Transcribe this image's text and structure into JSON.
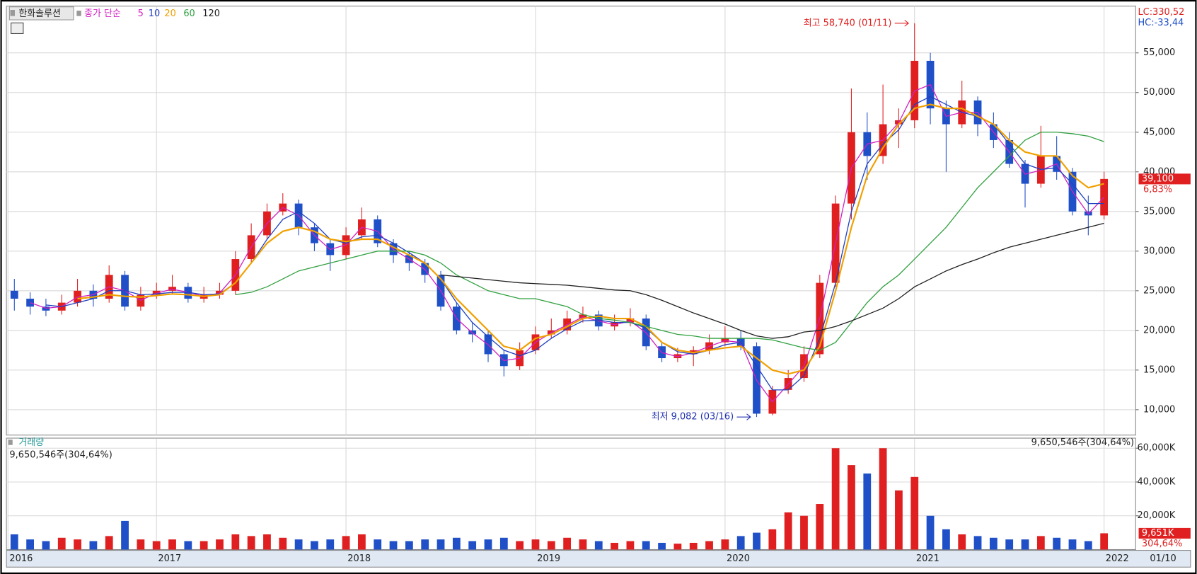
{
  "header": {
    "stock_name": "한화솔루션",
    "ma_label": "종가 단순",
    "lc": "LC:330,52",
    "hc": "HC:-33,44"
  },
  "chart_data": [
    {
      "type": "candlestick",
      "categories": [
        "2016",
        null,
        null,
        null,
        null,
        null,
        null,
        null,
        null,
        "2017",
        null,
        null,
        null,
        null,
        null,
        null,
        null,
        null,
        null,
        null,
        null,
        "2018",
        null,
        null,
        null,
        null,
        null,
        null,
        null,
        null,
        null,
        null,
        null,
        "2019",
        null,
        null,
        null,
        null,
        null,
        null,
        null,
        null,
        null,
        null,
        null,
        "2020",
        null,
        null,
        null,
        null,
        null,
        null,
        null,
        null,
        null,
        null,
        null,
        "2021",
        null,
        null,
        null,
        null,
        null,
        null,
        null,
        null,
        null,
        null,
        null,
        "2022"
      ],
      "candles": [
        [
          25000,
          26500,
          22500,
          24000
        ],
        [
          24000,
          24800,
          22000,
          23000
        ],
        [
          23000,
          24000,
          21800,
          22500
        ],
        [
          22500,
          24500,
          22000,
          23500
        ],
        [
          23500,
          26500,
          23000,
          25000
        ],
        [
          25000,
          25800,
          23000,
          24000
        ],
        [
          24000,
          28200,
          23500,
          27000
        ],
        [
          27000,
          27500,
          22500,
          23000
        ],
        [
          23000,
          25500,
          22500,
          24500
        ],
        [
          24500,
          26000,
          24000,
          25000
        ],
        [
          25000,
          27000,
          24500,
          25500
        ],
        [
          25500,
          26000,
          23500,
          24000
        ],
        [
          24000,
          25500,
          23500,
          24500
        ],
        [
          24500,
          26000,
          24000,
          25000
        ],
        [
          25000,
          30000,
          24500,
          29000
        ],
        [
          29000,
          33500,
          28500,
          32000
        ],
        [
          32000,
          36000,
          31500,
          35000
        ],
        [
          35000,
          37300,
          34500,
          36000
        ],
        [
          36000,
          36500,
          32000,
          33000
        ],
        [
          33000,
          33500,
          30000,
          31000
        ],
        [
          31000,
          31500,
          27500,
          29500
        ],
        [
          29500,
          33000,
          29000,
          32000
        ],
        [
          32000,
          35500,
          31500,
          34000
        ],
        [
          34000,
          34500,
          30500,
          31000
        ],
        [
          31000,
          31500,
          28500,
          29500
        ],
        [
          29500,
          30000,
          27500,
          28500
        ],
        [
          28500,
          29000,
          26000,
          27000
        ],
        [
          27000,
          27500,
          22500,
          23000
        ],
        [
          23000,
          23500,
          19500,
          20000
        ],
        [
          20000,
          21000,
          18500,
          19500
        ],
        [
          19500,
          20000,
          16000,
          17000
        ],
        [
          17000,
          17500,
          14200,
          15500
        ],
        [
          15500,
          18500,
          15000,
          17500
        ],
        [
          17500,
          20500,
          17000,
          19500
        ],
        [
          19500,
          21500,
          19000,
          20000
        ],
        [
          20000,
          22500,
          19500,
          21500
        ],
        [
          21500,
          23000,
          21000,
          22000
        ],
        [
          22000,
          22500,
          20000,
          20500
        ],
        [
          20500,
          22000,
          20000,
          21000
        ],
        [
          21000,
          22800,
          20500,
          21500
        ],
        [
          21500,
          22000,
          17500,
          18000
        ],
        [
          18000,
          18500,
          16000,
          16500
        ],
        [
          16500,
          17800,
          16000,
          17000
        ],
        [
          17000,
          18000,
          15500,
          17500
        ],
        [
          17500,
          19500,
          17000,
          18500
        ],
        [
          18500,
          20500,
          18000,
          19000
        ],
        [
          19000,
          20000,
          17500,
          18000
        ],
        [
          18000,
          18500,
          9082,
          9500
        ],
        [
          9500,
          13000,
          9300,
          12500
        ],
        [
          12500,
          15000,
          12000,
          14000
        ],
        [
          14000,
          18000,
          13500,
          17000
        ],
        [
          17000,
          27000,
          16500,
          26000
        ],
        [
          26000,
          37000,
          25500,
          36000
        ],
        [
          36000,
          50500,
          34000,
          45000
        ],
        [
          45000,
          47500,
          39000,
          42000
        ],
        [
          42000,
          51000,
          41000,
          46000
        ],
        [
          46000,
          48000,
          43000,
          46500
        ],
        [
          46500,
          58740,
          45500,
          54000
        ],
        [
          54000,
          55000,
          46000,
          48000
        ],
        [
          48000,
          49000,
          40000,
          46000
        ],
        [
          46000,
          51500,
          45500,
          49000
        ],
        [
          49000,
          49500,
          44500,
          46000
        ],
        [
          46000,
          47500,
          43000,
          44000
        ],
        [
          44000,
          45000,
          40500,
          41000
        ],
        [
          41000,
          41500,
          35500,
          38500
        ],
        [
          38500,
          45800,
          38000,
          42000
        ],
        [
          42000,
          44500,
          39000,
          40000
        ],
        [
          40000,
          40500,
          34500,
          35000
        ],
        [
          35000,
          37000,
          32000,
          34500
        ],
        [
          34500,
          40000,
          34000,
          39100
        ]
      ],
      "series": [
        {
          "name": "5",
          "color": "#d020c0",
          "values": [
            null,
            23500,
            22800,
            23000,
            24200,
            24500,
            25500,
            25000,
            23800,
            24700,
            25200,
            24800,
            24300,
            24700,
            27000,
            30500,
            33500,
            35500,
            34500,
            32000,
            30200,
            30800,
            33000,
            32500,
            30200,
            29000,
            27700,
            25000,
            21500,
            19700,
            18200,
            16200,
            16500,
            18500,
            19700,
            20700,
            21700,
            21200,
            20700,
            21200,
            19700,
            17200,
            16700,
            17200,
            18000,
            18700,
            18500,
            13700,
            11000,
            13200,
            15500,
            21500,
            31000,
            40500,
            43500,
            44000,
            46200,
            50200,
            51000,
            47000,
            47500,
            47500,
            45000,
            42500,
            39700,
            40200,
            41000,
            37500,
            34700,
            36800
          ]
        },
        {
          "name": "10",
          "color": "#2040c0",
          "values": [
            null,
            null,
            23200,
            23000,
            23500,
            24000,
            25000,
            25000,
            24500,
            24600,
            24800,
            24800,
            24500,
            24600,
            26000,
            28500,
            31500,
            34000,
            35000,
            33500,
            31500,
            31000,
            31800,
            32000,
            31000,
            29800,
            28500,
            26500,
            23500,
            21000,
            19200,
            17500,
            16800,
            17500,
            19000,
            20200,
            21200,
            21300,
            21000,
            21000,
            20300,
            18500,
            17300,
            17000,
            17500,
            18200,
            18500,
            15500,
            12500,
            12500,
            14300,
            19000,
            26000,
            35000,
            41000,
            43500,
            45300,
            48500,
            49500,
            48500,
            47500,
            47000,
            46000,
            43500,
            41000,
            40300,
            40500,
            38500,
            36000,
            36000
          ]
        },
        {
          "name": "20",
          "color": "#f0a000",
          "values": [
            null,
            null,
            null,
            null,
            24000,
            24200,
            24500,
            24300,
            24200,
            24400,
            24600,
            24500,
            24300,
            24500,
            26000,
            28500,
            31000,
            32500,
            33000,
            32500,
            31500,
            31200,
            31500,
            31500,
            30500,
            29500,
            28500,
            26500,
            24000,
            22000,
            20000,
            18000,
            17500,
            19000,
            19500,
            20500,
            21500,
            21800,
            21500,
            21500,
            20500,
            18500,
            17500,
            17200,
            17500,
            17800,
            18000,
            16500,
            15000,
            14500,
            15000,
            18000,
            25000,
            33000,
            39500,
            43000,
            46000,
            48000,
            48500,
            48000,
            48000,
            47000,
            46000,
            44000,
            42500,
            42000,
            42000,
            39500,
            38000,
            38500
          ]
        },
        {
          "name": "60",
          "color": "#30a040",
          "values": [
            null,
            null,
            null,
            null,
            null,
            null,
            null,
            null,
            null,
            null,
            null,
            null,
            null,
            null,
            24500,
            24800,
            25500,
            26500,
            27500,
            28000,
            28500,
            29000,
            29500,
            30000,
            30000,
            30000,
            29500,
            28500,
            27000,
            26000,
            25000,
            24500,
            24000,
            24000,
            23500,
            23000,
            22000,
            21500,
            21300,
            21000,
            20500,
            20000,
            19500,
            19300,
            19000,
            19000,
            19000,
            19000,
            18800,
            18300,
            17800,
            17500,
            18500,
            21000,
            23500,
            25500,
            27000,
            29000,
            31000,
            33000,
            35500,
            38000,
            40000,
            42000,
            44000,
            45000,
            45000,
            44800,
            44500,
            43800
          ]
        },
        {
          "name": "120",
          "color": "#202020",
          "values": [
            null,
            null,
            null,
            null,
            null,
            null,
            null,
            null,
            null,
            null,
            null,
            null,
            null,
            null,
            null,
            null,
            null,
            null,
            null,
            null,
            null,
            null,
            null,
            null,
            null,
            null,
            null,
            27000,
            26800,
            26600,
            26400,
            26200,
            26000,
            25900,
            25800,
            25700,
            25500,
            25300,
            25100,
            25000,
            24500,
            23800,
            23000,
            22200,
            21500,
            20800,
            20000,
            19300,
            19000,
            19200,
            19800,
            20000,
            20500,
            21200,
            22000,
            22800,
            24000,
            25500,
            26500,
            27500,
            28300,
            29000,
            29800,
            30500,
            31000,
            31500,
            32000,
            32500,
            33000,
            33500
          ]
        }
      ],
      "up_color": "#e02020",
      "down_color": "#2050c8",
      "ylim": [
        6800,
        60900
      ],
      "yticks": [
        {
          "value": 10000,
          "label": "10,000"
        },
        {
          "value": 15000,
          "label": "15,000"
        },
        {
          "value": 20000,
          "label": "20,000"
        },
        {
          "value": 25000,
          "label": "25,000"
        },
        {
          "value": 30000,
          "label": "30,000"
        },
        {
          "value": 35000,
          "label": "35,000"
        },
        {
          "value": 40000,
          "label": "40,000"
        },
        {
          "value": 45000,
          "label": "45,000"
        },
        {
          "value": 50000,
          "label": "50,000"
        },
        {
          "value": 55000,
          "label": "55,000"
        }
      ],
      "grid": true,
      "annotations": {
        "high": "최고 58,740 (01/11)",
        "low": "최저 9,082 (03/16)"
      },
      "last_price_label": "39,100",
      "last_change_label": "6,83%",
      "last_date_label": "01/10"
    },
    {
      "type": "bar",
      "title": "거래량",
      "summary_left": "9,650,546주(304,64%)",
      "summary_right": "9,650,546주(304,64%)",
      "values": [
        9000,
        6000,
        5000,
        7000,
        6000,
        5000,
        8000,
        17000,
        6000,
        5000,
        6000,
        5000,
        5000,
        6000,
        9000,
        8000,
        9000,
        7000,
        6000,
        5000,
        6000,
        8000,
        9000,
        6000,
        5000,
        5000,
        6000,
        6000,
        7000,
        5000,
        6000,
        7000,
        5000,
        6000,
        5000,
        7000,
        6000,
        5000,
        4000,
        5000,
        5000,
        4000,
        3500,
        4000,
        5000,
        6000,
        8000,
        10000,
        12000,
        22000,
        20000,
        27000,
        60000,
        50000,
        45000,
        60000,
        35000,
        43000,
        20000,
        12000,
        9000,
        8000,
        7000,
        6000,
        6000,
        8000,
        7000,
        6000,
        5000,
        9650.546
      ],
      "value_labels": [
        null,
        null,
        null,
        null,
        null,
        null,
        null,
        null,
        null,
        null,
        null,
        null,
        null,
        null,
        null,
        null,
        null,
        null,
        null,
        null,
        null,
        null,
        null,
        null,
        null,
        null,
        null,
        null,
        null,
        null,
        null,
        null,
        null,
        null,
        null,
        null,
        null,
        null,
        null,
        null,
        null,
        null,
        null,
        null,
        null,
        null,
        null,
        null,
        null,
        null,
        null,
        null,
        null,
        null,
        null,
        null,
        null,
        null,
        null,
        null,
        null,
        null,
        null,
        null,
        null,
        null,
        null,
        null,
        null,
        "9,651K"
      ],
      "last_ratio_label": "304,64%",
      "ylim": [
        0,
        65500
      ],
      "yticks": [
        {
          "value": 20000,
          "label": "20,000K"
        },
        {
          "value": 40000,
          "label": "40,000K"
        },
        {
          "value": 60000,
          "label": "60,000K"
        }
      ],
      "grid": true
    }
  ]
}
